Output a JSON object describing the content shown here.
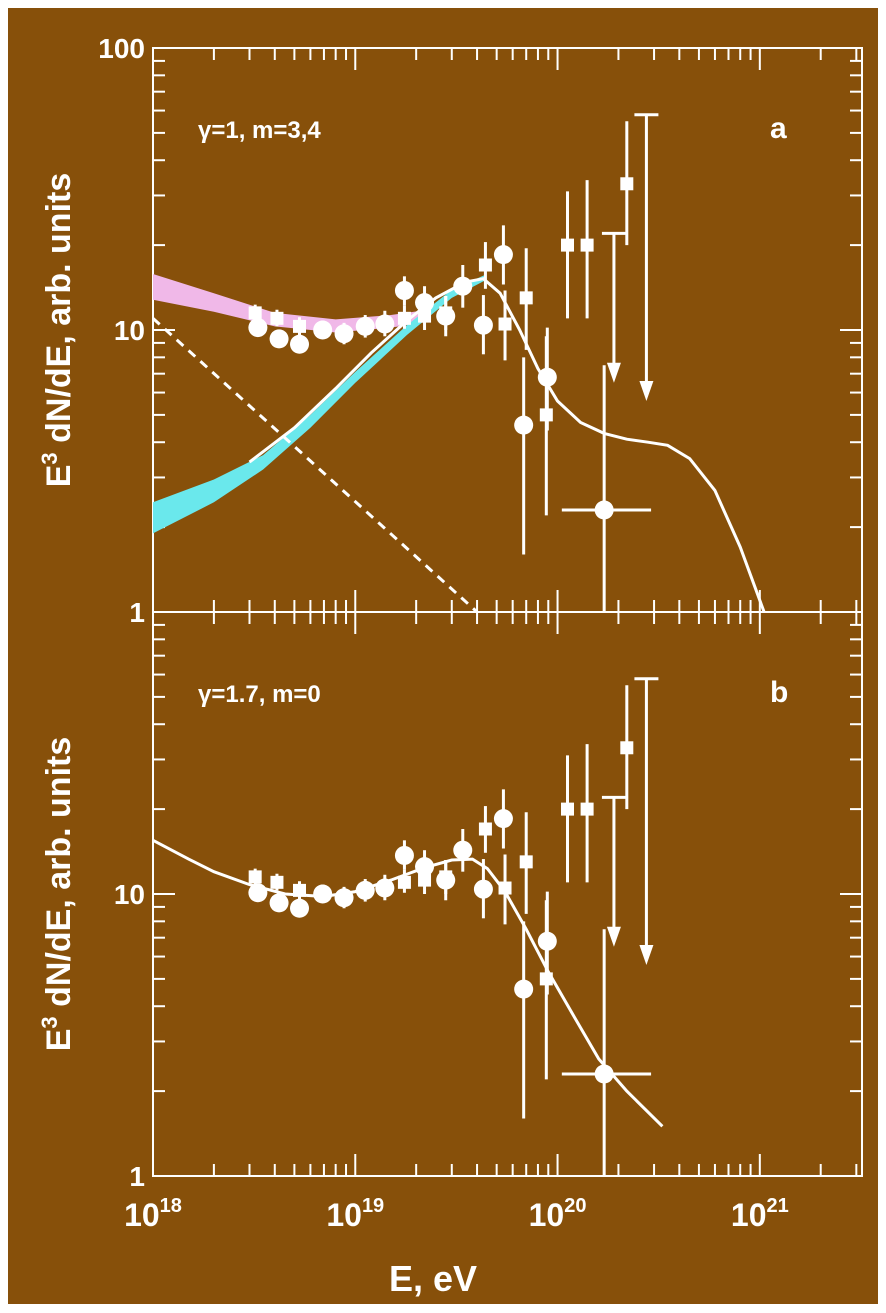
{
  "colors": {
    "background": "#87500a",
    "foreground": "#ffffff",
    "band_a_pink": "#f0b8e8",
    "band_a_cyan": "#6ae8ec"
  },
  "xlabel": "E, eV",
  "ylabel": "E3 dN/dE,  arb. units",
  "ylabel_main": "E",
  "ylabel_sup": "3",
  "ylabel_rest": " dN/dE,  arb. units",
  "x_ticks": [
    {
      "base": "10",
      "exp": "18",
      "value": 1e+18
    },
    {
      "base": "10",
      "exp": "19",
      "value": 1e+19
    },
    {
      "base": "10",
      "exp": "20",
      "value": 1e+20
    },
    {
      "base": "10",
      "exp": "21",
      "value": 1e+21
    }
  ],
  "chart_data": [
    {
      "panel": "a",
      "type": "scatter",
      "x_scale": "log",
      "y_scale": "log",
      "xlim": [
        1e+18,
        3.2e+21
      ],
      "ylim": [
        1,
        100
      ],
      "y_ticks": [
        "1",
        "10",
        "100"
      ],
      "annotations": {
        "params": "γ=1, m=3,4",
        "panel_label": "a"
      },
      "series": [
        {
          "marker": "circle",
          "points": [
            {
              "x": 3.3e+18,
              "y": 10.2,
              "yerr": [
                9.5,
                11.0
              ]
            },
            {
              "x": 4.2e+18,
              "y": 9.3,
              "yerr": [
                8.7,
                10.0
              ]
            },
            {
              "x": 5.3e+18,
              "y": 8.9,
              "yerr": [
                8.3,
                9.6
              ]
            },
            {
              "x": 6.9e+18,
              "y": 10.0,
              "yerr": [
                9.3,
                10.8
              ]
            },
            {
              "x": 8.8e+18,
              "y": 9.7,
              "yerr": [
                8.9,
                10.6
              ]
            },
            {
              "x": 1.12e+19,
              "y": 10.3,
              "yerr": [
                9.4,
                11.3
              ]
            },
            {
              "x": 1.4e+19,
              "y": 10.5,
              "yerr": [
                9.5,
                11.7
              ]
            },
            {
              "x": 1.75e+19,
              "y": 13.8,
              "yerr": [
                12.2,
                15.5
              ]
            },
            {
              "x": 2.2e+19,
              "y": 12.5,
              "yerr": [
                10.8,
                14.3
              ]
            },
            {
              "x": 2.8e+19,
              "y": 11.2,
              "yerr": [
                9.5,
                13.2
              ]
            },
            {
              "x": 3.4e+19,
              "y": 14.3,
              "yerr": [
                12.0,
                17.0
              ]
            },
            {
              "x": 4.3e+19,
              "y": 10.4,
              "yerr": [
                8.2,
                13.3
              ]
            },
            {
              "x": 5.4e+19,
              "y": 18.5,
              "yerr": [
                14.5,
                23.5
              ]
            },
            {
              "x": 6.8e+19,
              "y": 4.6,
              "yerr": [
                1.6,
                8.0
              ]
            },
            {
              "x": 8.9e+19,
              "y": 6.8,
              "yerr": [
                4.4,
                10.2
              ]
            },
            {
              "x": 1.7e+20,
              "y": 2.3,
              "yerr": [
                1.0,
                7.5
              ],
              "xerr": [
                1.05e+20,
                2.9e+20
              ]
            }
          ]
        },
        {
          "marker": "square",
          "points": [
            {
              "x": 3.2e+18,
              "y": 11.5,
              "yerr": [
                10.8,
                12.3
              ]
            },
            {
              "x": 4.1e+18,
              "y": 11.0,
              "yerr": [
                10.3,
                11.8
              ]
            },
            {
              "x": 5.3e+18,
              "y": 10.3,
              "yerr": [
                9.6,
                11.1
              ]
            },
            {
              "x": 1.75e+19,
              "y": 11.0,
              "yerr": [
                10.1,
                12.2
              ]
            },
            {
              "x": 2.2e+19,
              "y": 11.2,
              "yerr": [
                10.0,
                12.6
              ]
            },
            {
              "x": 2.8e+19,
              "y": 11.5,
              "yerr": [
                10.0,
                13.2
              ]
            },
            {
              "x": 4.4e+19,
              "y": 17.0,
              "yerr": [
                14.0,
                20.5
              ]
            },
            {
              "x": 5.5e+19,
              "y": 10.5,
              "yerr": [
                7.8,
                13.8
              ]
            },
            {
              "x": 7e+19,
              "y": 13.0,
              "yerr": [
                8.5,
                19.5
              ]
            },
            {
              "x": 8.8e+19,
              "y": 5.0,
              "yerr": [
                2.2,
                9.5
              ]
            },
            {
              "x": 1.12e+20,
              "y": 20.0,
              "yerr": [
                11.0,
                31.0
              ]
            },
            {
              "x": 1.4e+20,
              "y": 20.0,
              "yerr": [
                11.0,
                34.0
              ]
            },
            {
              "x": 2.2e+20,
              "y": 33.0,
              "yerr": [
                20.0,
                55.0
              ]
            }
          ]
        },
        {
          "marker": "upper-limit-arrow",
          "points": [
            {
              "x": 1.9e+20,
              "top": 22.0,
              "y": 6.5
            },
            {
              "x": 2.75e+20,
              "top": 58.0,
              "y": 5.6
            }
          ]
        },
        {
          "type": "line",
          "style": "solid",
          "points": [
            [
              3e+18,
              3.4
            ],
            [
              5e+18,
              4.5
            ],
            [
              8e+18,
              6.2
            ],
            [
              1.2e+19,
              8.3
            ],
            [
              1.8e+19,
              10.8
            ],
            [
              2.5e+19,
              13.0
            ],
            [
              3.5e+19,
              14.8
            ],
            [
              4.3e+19,
              15.2
            ],
            [
              5.2e+19,
              13.5
            ],
            [
              6.5e+19,
              10.0
            ],
            [
              8e+19,
              7.3
            ],
            [
              1e+20,
              5.6
            ],
            [
              1.3e+20,
              4.7
            ],
            [
              1.7e+20,
              4.3
            ],
            [
              2.2e+20,
              4.1
            ],
            [
              2.8e+20,
              4.0
            ],
            [
              3.5e+20,
              3.9
            ],
            [
              4.5e+20,
              3.5
            ],
            [
              6e+20,
              2.7
            ],
            [
              8e+20,
              1.7
            ],
            [
              1.05e+21,
              1.0
            ]
          ]
        },
        {
          "type": "line",
          "style": "dashed",
          "points": [
            [
              1e+18,
              11.0
            ],
            [
              4e+19,
              1.0
            ]
          ]
        },
        {
          "type": "band",
          "color": "#f0b8e8",
          "upper": [
            [
              1e+18,
              15.8
            ],
            [
              2e+18,
              13.5
            ],
            [
              4e+18,
              11.5
            ],
            [
              8e+18,
              10.9
            ],
            [
              1.5e+19,
              11.3
            ],
            [
              2.3e+19,
              11.8
            ]
          ],
          "lower": [
            [
              1e+18,
              12.8
            ],
            [
              2e+18,
              11.6
            ],
            [
              4e+18,
              10.3
            ],
            [
              8e+18,
              9.8
            ],
            [
              1.5e+19,
              10.2
            ],
            [
              2.3e+19,
              10.7
            ]
          ]
        },
        {
          "type": "band",
          "color": "#6ae8ec",
          "upper": [
            [
              1e+18,
              2.45
            ],
            [
              2e+18,
              2.95
            ],
            [
              3.5e+18,
              3.6
            ],
            [
              6e+18,
              5.0
            ],
            [
              1e+19,
              7.1
            ],
            [
              1.8e+19,
              10.4
            ],
            [
              3e+19,
              13.9
            ],
            [
              4.4e+19,
              15.7
            ]
          ],
          "lower": [
            [
              1e+18,
              1.9
            ],
            [
              2e+18,
              2.45
            ],
            [
              3.5e+18,
              3.2
            ],
            [
              6e+18,
              4.5
            ],
            [
              1e+19,
              6.5
            ],
            [
              1.8e+19,
              9.6
            ],
            [
              3e+19,
              13.0
            ],
            [
              4.4e+19,
              15.0
            ]
          ]
        }
      ]
    },
    {
      "panel": "b",
      "type": "scatter",
      "x_scale": "log",
      "y_scale": "log",
      "xlim": [
        1e+18,
        3.2e+21
      ],
      "ylim": [
        1,
        100
      ],
      "y_ticks": [
        "1",
        "10"
      ],
      "annotations": {
        "params": "γ=1.7, m=0",
        "panel_label": "b"
      },
      "series": [
        {
          "marker": "circle",
          "points": [
            {
              "x": 3.3e+18,
              "y": 10.1,
              "yerr": [
                9.4,
                10.9
              ]
            },
            {
              "x": 4.2e+18,
              "y": 9.3,
              "yerr": [
                8.7,
                10.0
              ]
            },
            {
              "x": 5.3e+18,
              "y": 8.9,
              "yerr": [
                8.3,
                9.6
              ]
            },
            {
              "x": 6.9e+18,
              "y": 10.0,
              "yerr": [
                9.3,
                10.8
              ]
            },
            {
              "x": 8.8e+18,
              "y": 9.7,
              "yerr": [
                8.9,
                10.6
              ]
            },
            {
              "x": 1.12e+19,
              "y": 10.3,
              "yerr": [
                9.4,
                11.3
              ]
            },
            {
              "x": 1.4e+19,
              "y": 10.5,
              "yerr": [
                9.5,
                11.7
              ]
            },
            {
              "x": 1.75e+19,
              "y": 13.7,
              "yerr": [
                12.2,
                15.5
              ]
            },
            {
              "x": 2.2e+19,
              "y": 12.5,
              "yerr": [
                10.8,
                14.3
              ]
            },
            {
              "x": 2.8e+19,
              "y": 11.2,
              "yerr": [
                9.5,
                13.2
              ]
            },
            {
              "x": 3.4e+19,
              "y": 14.3,
              "yerr": [
                12.0,
                17.0
              ]
            },
            {
              "x": 4.3e+19,
              "y": 10.4,
              "yerr": [
                8.2,
                13.3
              ]
            },
            {
              "x": 5.4e+19,
              "y": 18.5,
              "yerr": [
                14.5,
                23.5
              ]
            },
            {
              "x": 6.8e+19,
              "y": 4.6,
              "yerr": [
                1.6,
                8.0
              ]
            },
            {
              "x": 8.9e+19,
              "y": 6.8,
              "yerr": [
                4.4,
                10.2
              ]
            },
            {
              "x": 1.7e+20,
              "y": 2.3,
              "yerr": [
                1.0,
                7.5
              ],
              "xerr": [
                1.05e+20,
                2.9e+20
              ]
            }
          ]
        },
        {
          "marker": "square",
          "points": [
            {
              "x": 3.2e+18,
              "y": 11.5,
              "yerr": [
                10.8,
                12.3
              ]
            },
            {
              "x": 4.1e+18,
              "y": 11.0,
              "yerr": [
                10.3,
                11.8
              ]
            },
            {
              "x": 5.3e+18,
              "y": 10.3,
              "yerr": [
                9.6,
                11.1
              ]
            },
            {
              "x": 1.75e+19,
              "y": 11.0,
              "yerr": [
                10.1,
                12.2
              ]
            },
            {
              "x": 2.2e+19,
              "y": 11.2,
              "yerr": [
                10.0,
                12.6
              ]
            },
            {
              "x": 2.8e+19,
              "y": 11.5,
              "yerr": [
                10.0,
                13.2
              ]
            },
            {
              "x": 4.4e+19,
              "y": 17.0,
              "yerr": [
                14.0,
                20.5
              ]
            },
            {
              "x": 5.5e+19,
              "y": 10.5,
              "yerr": [
                7.8,
                13.8
              ]
            },
            {
              "x": 7e+19,
              "y": 13.0,
              "yerr": [
                8.5,
                19.5
              ]
            },
            {
              "x": 8.8e+19,
              "y": 5.0,
              "yerr": [
                2.2,
                9.5
              ]
            },
            {
              "x": 1.12e+20,
              "y": 20.0,
              "yerr": [
                11.0,
                31.0
              ]
            },
            {
              "x": 1.4e+20,
              "y": 20.0,
              "yerr": [
                11.0,
                34.0
              ]
            },
            {
              "x": 2.2e+20,
              "y": 33.0,
              "yerr": [
                20.0,
                55.0
              ]
            }
          ]
        },
        {
          "marker": "upper-limit-arrow",
          "points": [
            {
              "x": 1.9e+20,
              "top": 22.0,
              "y": 6.5
            },
            {
              "x": 2.75e+20,
              "top": 58.0,
              "y": 5.6
            }
          ]
        },
        {
          "type": "line",
          "style": "solid",
          "points": [
            [
              1e+18,
              15.5
            ],
            [
              1.5e+18,
              13.3
            ],
            [
              2e+18,
              12.0
            ],
            [
              3e+18,
              10.8
            ],
            [
              4.5e+18,
              10.0
            ],
            [
              7e+18,
              9.8
            ],
            [
              1e+19,
              10.2
            ],
            [
              1.5e+19,
              11.2
            ],
            [
              2.2e+19,
              12.4
            ],
            [
              3e+19,
              13.2
            ],
            [
              3.8e+19,
              13.3
            ],
            [
              4.5e+19,
              12.3
            ],
            [
              5.5e+19,
              10.2
            ],
            [
              7e+19,
              7.5
            ],
            [
              9e+19,
              5.3
            ],
            [
              1.2e+20,
              3.7
            ],
            [
              1.6e+20,
              2.6
            ],
            [
              2.2e+20,
              2.0
            ],
            [
              3.3e+20,
              1.5
            ]
          ]
        }
      ]
    }
  ]
}
